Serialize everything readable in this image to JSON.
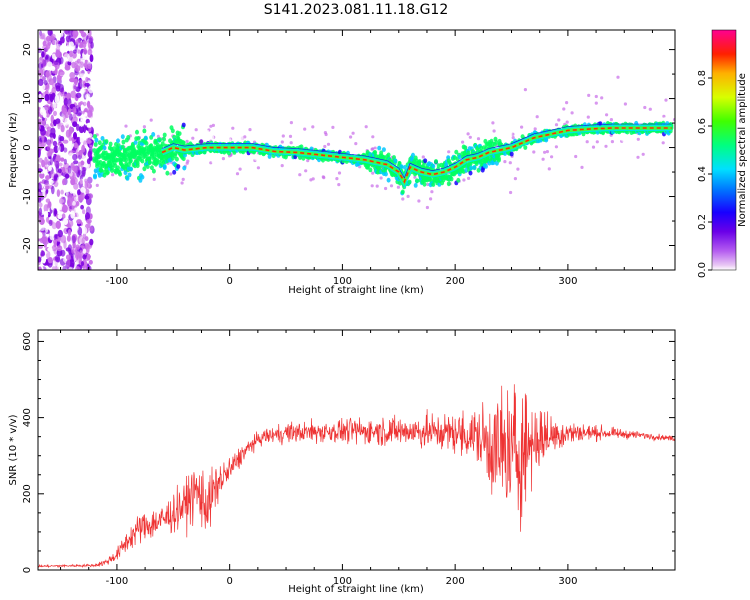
{
  "title": "S141.2023.081.11.18.G12",
  "chart_data": [
    {
      "type": "heatmap",
      "name": "spectrogram",
      "xlabel": "Height of straight line (km)",
      "ylabel": "Frequency (Hz)",
      "xlim": [
        -170,
        395
      ],
      "ylim": [
        -25,
        24
      ],
      "xticks": [
        -100,
        0,
        100,
        200,
        300
      ],
      "xtick_labels": [
        "-100",
        "0",
        "100",
        "200",
        "300"
      ],
      "yticks": [
        -20,
        -10,
        0,
        10,
        20
      ],
      "ytick_labels": [
        "-20",
        "-10",
        "0",
        "10",
        "20"
      ],
      "colorbar": {
        "label": "Normalized spectral amplitude",
        "range": [
          0.0,
          1.0
        ],
        "ticks": [
          0.0,
          0.2,
          0.4,
          0.6,
          0.8
        ],
        "tick_labels": [
          "0.0",
          "0.2",
          "0.4",
          "0.6",
          "0.8"
        ],
        "colormap": [
          "#ffffff",
          "#c86be8",
          "#7b00e0",
          "#1a00ff",
          "#00c8ff",
          "#00ff60",
          "#c8ff00",
          "#ffd000",
          "#ff3000",
          "#ff0090"
        ]
      },
      "ridge": {
        "x": [
          -120,
          -100,
          -80,
          -60,
          -50,
          -40,
          -20,
          0,
          20,
          40,
          60,
          80,
          100,
          120,
          130,
          140,
          150,
          155,
          160,
          170,
          180,
          190,
          200,
          210,
          220,
          230,
          240,
          250,
          260,
          270,
          280,
          290,
          300,
          320,
          340,
          360,
          380,
          395
        ],
        "y": [
          -2,
          -2.5,
          -1.5,
          -1,
          0,
          -0.5,
          0,
          0,
          0,
          -0.8,
          -1,
          -1.5,
          -2,
          -2.5,
          -3,
          -3.5,
          -5,
          -7,
          -4,
          -5,
          -5.5,
          -5,
          -4,
          -2.5,
          -2,
          -1,
          -0.5,
          0,
          1,
          2,
          2.5,
          3,
          3.5,
          3.8,
          4,
          4,
          4,
          4
        ]
      },
      "noise_band_x": [
        -170,
        -122
      ]
    },
    {
      "type": "line",
      "name": "snr",
      "xlabel": "Height of straight line (km)",
      "ylabel": "SNR (10 * v/v)",
      "xlim": [
        -170,
        395
      ],
      "ylim": [
        0,
        630
      ],
      "xticks": [
        -100,
        0,
        100,
        200,
        300
      ],
      "xtick_labels": [
        "-100",
        "0",
        "100",
        "200",
        "300"
      ],
      "yticks": [
        0,
        200,
        400,
        600
      ],
      "ytick_labels": [
        "0",
        "200",
        "400",
        "600"
      ],
      "color": "#ee3333",
      "envelope": {
        "x": [
          -170,
          -120,
          -110,
          -100,
          -90,
          -80,
          -60,
          -40,
          -30,
          -20,
          -10,
          0,
          10,
          20,
          30,
          50,
          100,
          150,
          200,
          220,
          230,
          240,
          250,
          260,
          270,
          280,
          300,
          330,
          360,
          395
        ],
        "mean": [
          10,
          12,
          20,
          40,
          80,
          110,
          130,
          170,
          210,
          170,
          230,
          260,
          300,
          330,
          350,
          360,
          365,
          365,
          360,
          350,
          330,
          310,
          300,
          320,
          340,
          350,
          360,
          360,
          355,
          345
        ],
        "spread": [
          5,
          5,
          15,
          25,
          50,
          60,
          70,
          90,
          120,
          120,
          80,
          60,
          40,
          30,
          30,
          40,
          50,
          60,
          80,
          120,
          180,
          260,
          300,
          280,
          160,
          100,
          50,
          25,
          15,
          10
        ]
      }
    }
  ]
}
